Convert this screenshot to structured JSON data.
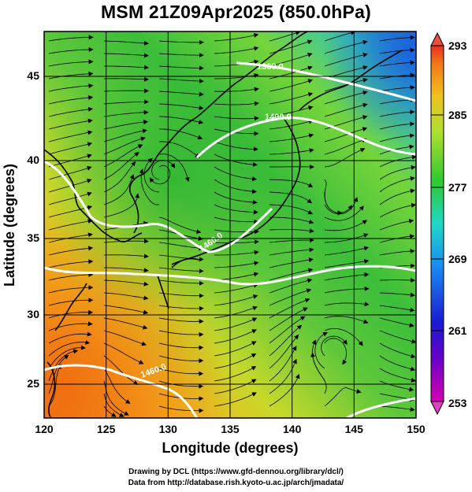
{
  "title": "MSM 21Z09Apr2025 (850.0hPa)",
  "axes": {
    "xlabel": "Longitude (degrees)",
    "ylabel": "Latitude  (degrees)",
    "xticks": [
      "120",
      "125",
      "130",
      "135",
      "140",
      "145",
      "150"
    ],
    "yticks": [
      "25",
      "30",
      "35",
      "40",
      "45"
    ]
  },
  "colorbar": {
    "ticks": [
      "293",
      "285",
      "277",
      "269",
      "261",
      "253"
    ]
  },
  "contours": {
    "labels": [
      "1360.0",
      "1400.0",
      "1460.0",
      "1460.0"
    ]
  },
  "credits": {
    "line1": "Drawing by DCL (https://www.gfd-dennou.org/library/dcl/)",
    "line2": "Data from http://database.rish.kyoto-u.ac.jp/arch/jmadata/"
  }
}
